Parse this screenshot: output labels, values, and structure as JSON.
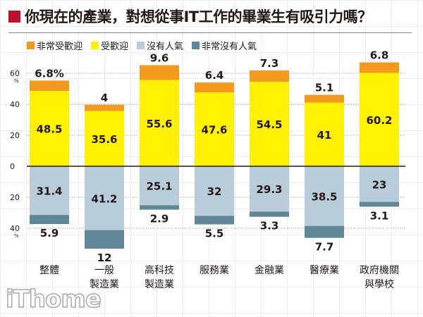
{
  "title": "你現在的產業，對想從事IT工作的畢業生有吸引力嗎？",
  "logo": "iThome",
  "chart_data": {
    "type": "bar",
    "title": "你現在的產業，對想從事IT工作的畢業生有吸引力嗎？",
    "categories": [
      [
        "整體"
      ],
      [
        "一般",
        "製造業"
      ],
      [
        "高科技",
        "製造業"
      ],
      [
        "服務業"
      ],
      [
        "金融業"
      ],
      [
        "醫療業"
      ],
      [
        "政府機關",
        "與學校"
      ]
    ],
    "series": [
      {
        "name": "非常受歡迎",
        "color": "#f39a1e",
        "values": [
          6.8,
          4,
          9.6,
          6.4,
          7.3,
          5.1,
          6.8
        ],
        "labels": [
          "6.8%",
          "4",
          "9.6",
          "6.4",
          "7.3",
          "5.1",
          "6.8"
        ]
      },
      {
        "name": "受歡迎",
        "color": "#fff100",
        "values": [
          48.5,
          35.6,
          55.6,
          47.6,
          54.5,
          41,
          60.2
        ],
        "labels": [
          "48.5",
          "35.6",
          "55.6",
          "47.6",
          "54.5",
          "41",
          "60.2"
        ]
      },
      {
        "name": "沒有人氣",
        "color": "#b8cdd9",
        "values": [
          -31.4,
          -41.2,
          -25.1,
          -32,
          -29.3,
          -38.5,
          -23
        ],
        "labels": [
          "31.4",
          "41.2",
          "25.1",
          "32",
          "29.3",
          "38.5",
          "23"
        ]
      },
      {
        "name": "非常沒有人氣",
        "color": "#5f8799",
        "values": [
          -5.9,
          -12,
          -2.9,
          -5.5,
          -3.3,
          -7.7,
          -3.1
        ],
        "labels": [
          "5.9",
          "12",
          "2.9",
          "5.5",
          "3.3",
          "7.7",
          "3.1"
        ]
      }
    ],
    "yticks": [
      {
        "v": 60,
        "t": "60"
      },
      {
        "v": 40,
        "t": "40"
      },
      {
        "v": 20,
        "t": "20"
      },
      {
        "v": 0,
        "t": "0"
      },
      {
        "v": -20,
        "t": "20"
      },
      {
        "v": -40,
        "t": "40"
      }
    ],
    "unit": "%",
    "ylim": [
      -45,
      70
    ],
    "legend": "top-left"
  }
}
